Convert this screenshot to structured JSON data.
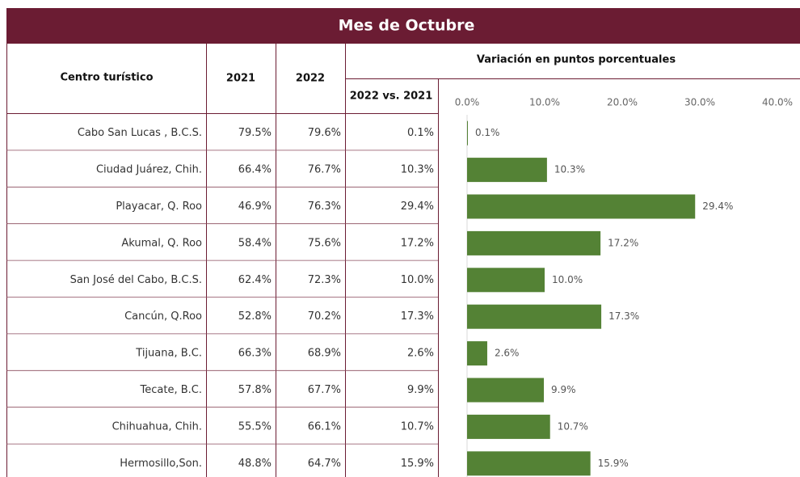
{
  "title": "Mes de Octubre",
  "table": {
    "headers": [
      "Centro turístico",
      "2021",
      "2022"
    ],
    "variation_header": "Variación en puntos porcentuales",
    "diff_header": "2022 vs. 2021",
    "rows": [
      [
        "79.5%",
        "79.6%",
        "0.1%"
      ],
      [
        "66.4%",
        "76.7%",
        "10.3%"
      ],
      [
        "46.9%",
        "76.3%",
        "29.4%"
      ],
      [
        "58.4%",
        "75.6%",
        "17.2%"
      ],
      [
        "62.4%",
        "72.3%",
        "10.0%"
      ],
      [
        "52.8%",
        "70.2%",
        "17.3%"
      ],
      [
        "66.3%",
        "68.9%",
        "2.6%"
      ],
      [
        "57.8%",
        "67.7%",
        "9.9%"
      ],
      [
        "55.5%",
        "66.1%",
        "10.7%"
      ],
      [
        "48.8%",
        "64.7%",
        "15.9%"
      ]
    ]
  },
  "chart_data": {
    "type": "bar",
    "orientation": "horizontal",
    "categories": [
      "Cabo San Lucas , B.C.S.",
      "Ciudad Juárez, Chih.",
      "Playacar, Q. Roo",
      "Akumal, Q. Roo",
      "San José del Cabo, B.C.S.",
      "Cancún, Q.Roo",
      "Tijuana, B.C.",
      "Tecate, B.C.",
      "Chihuahua, Chih.",
      "Hermosillo,Son."
    ],
    "values": [
      0.1,
      10.3,
      29.4,
      17.2,
      10.0,
      17.3,
      2.6,
      9.9,
      10.7,
      15.9
    ],
    "value_labels": [
      "0.1%",
      "10.3%",
      "29.4%",
      "17.2%",
      "10.0%",
      "17.3%",
      "2.6%",
      "9.9%",
      "10.7%",
      "15.9%"
    ],
    "color": "#548235",
    "xlim": [
      0,
      40
    ],
    "xticks": [
      {
        "value": 0,
        "label": "0.0%"
      },
      {
        "value": 10,
        "label": "10.0%"
      },
      {
        "value": 20,
        "label": "20.0%"
      },
      {
        "value": 30,
        "label": "30.0%"
      },
      {
        "value": 40,
        "label": "40.0%"
      }
    ]
  }
}
